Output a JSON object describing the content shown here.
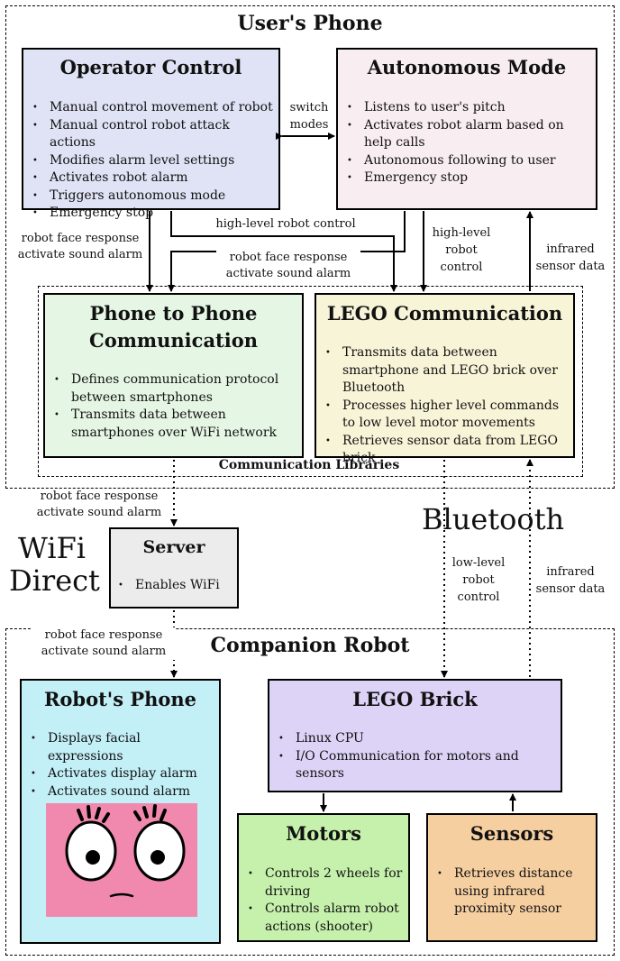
{
  "regions": {
    "users_phone": "User's Phone",
    "communication_libraries": "Communication Libraries",
    "companion_robot": "Companion Robot"
  },
  "operator_control": {
    "title": "Operator Control",
    "items": [
      "Manual control movement of robot",
      "Manual control robot attack actions",
      "Modifies alarm level settings",
      "Activates robot alarm",
      "Triggers autonomous mode",
      "Emergency stop"
    ]
  },
  "autonomous_mode": {
    "title": "Autonomous Mode",
    "items": [
      "Listens to user's pitch",
      "Activates robot alarm based on help calls",
      "Autonomous following to user",
      "Emergency stop"
    ]
  },
  "phone_to_phone": {
    "title_line1": "Phone to Phone",
    "title_line2": "Communication",
    "items": [
      "Defines communication protocol between smartphones",
      "Transmits data between smartphones over WiFi network"
    ]
  },
  "lego_communication": {
    "title": "LEGO Communication",
    "items": [
      "Transmits data between smartphone and LEGO brick over Bluetooth",
      "Processes higher level commands to low level motor movements",
      "Retrieves sensor data from LEGO brick"
    ]
  },
  "server": {
    "title": "Server",
    "items": [
      "Enables WiFi"
    ]
  },
  "robots_phone": {
    "title": "Robot's Phone",
    "items": [
      "Displays facial expressions",
      "Activates display alarm",
      "Activates sound alarm"
    ]
  },
  "lego_brick": {
    "title": "LEGO Brick",
    "items": [
      "Linux CPU",
      "I/O Communication for motors and sensors"
    ]
  },
  "motors": {
    "title": "Motors",
    "items": [
      "Controls 2 wheels for driving",
      "Controls alarm robot actions (shooter)"
    ]
  },
  "sensors": {
    "title": "Sensors",
    "items": [
      "Retrieves distance using infrared proximity sensor"
    ]
  },
  "labels": {
    "switch_modes_1": "switch",
    "switch_modes_2": "modes",
    "high_level_control": "high-level robot control",
    "face_response_left_1": "robot face response",
    "face_response_left_2": "activate sound alarm",
    "face_response_mid_1": "robot face response",
    "face_response_mid_2": "activate sound alarm",
    "high_level_1": "high-level",
    "high_level_2": "robot",
    "high_level_3": "control",
    "infrared_top_1": "infrared",
    "infrared_top_2": "sensor data",
    "face_response_server_1": "robot face response",
    "face_response_server_2": "activate sound alarm",
    "face_response_robot_1": "robot face response",
    "face_response_robot_2": "activate sound alarm",
    "low_level_1": "low-level",
    "low_level_2": "robot",
    "low_level_3": "control",
    "infrared_bottom_1": "infrared",
    "infrared_bottom_2": "sensor data",
    "wifi_direct_1": "WiFi",
    "wifi_direct_2": "Direct",
    "bluetooth": "Bluetooth"
  },
  "colors": {
    "operator": "#dfe3f5",
    "autonomous": "#f8eef2",
    "phone_comm": "#e5f6e4",
    "lego_comm": "#f8f4d8",
    "server": "#ececec",
    "robots_phone": "#c3eff7",
    "lego_brick": "#dcd3f6",
    "motors": "#c6f1ac",
    "sensors": "#f6cfa1",
    "face": "#f089ad"
  }
}
